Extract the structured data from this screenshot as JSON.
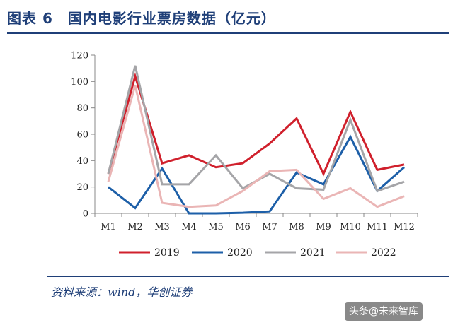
{
  "header": {
    "title": "图表 6　国内电影行业票房数据（亿元）"
  },
  "footer": {
    "source": "资料来源：wind，华创证券",
    "watermark": "头条@未来智库"
  },
  "colors": {
    "title": "#1f3f78",
    "series_2019": "#d0202c",
    "series_2020": "#1d5fa8",
    "series_2021": "#a5a5a8",
    "series_2022": "#eab5b5"
  },
  "chart_data": {
    "type": "line",
    "categories": [
      "M1",
      "M2",
      "M3",
      "M4",
      "M5",
      "M6",
      "M7",
      "M8",
      "M9",
      "M10",
      "M11",
      "M12"
    ],
    "yticks": [
      0,
      20,
      40,
      60,
      80,
      100,
      120
    ],
    "ylim": [
      0,
      120
    ],
    "grid": false,
    "legend_position": "bottom",
    "series": [
      {
        "name": "2019",
        "color": "#d0202c",
        "values": [
          30,
          104,
          38,
          44,
          35,
          38,
          53,
          72,
          30,
          77,
          33,
          37
        ]
      },
      {
        "name": "2020",
        "color": "#1d5fa8",
        "values": [
          20,
          4,
          34,
          0,
          0,
          0.5,
          1.5,
          31,
          22,
          58,
          17,
          35
        ]
      },
      {
        "name": "2021",
        "color": "#a5a5a8",
        "values": [
          30,
          112,
          22,
          22,
          44,
          19,
          30,
          19,
          18,
          71,
          17,
          24
        ]
      },
      {
        "name": "2022",
        "color": "#eab5b5",
        "values": [
          24,
          97,
          8,
          5,
          6,
          17,
          32,
          33,
          11,
          19,
          5,
          13
        ]
      }
    ]
  }
}
